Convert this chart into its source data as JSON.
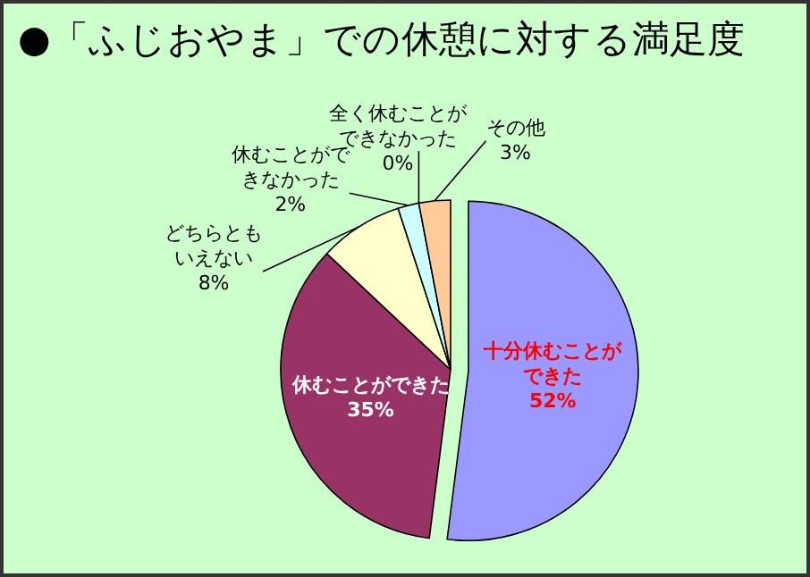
{
  "chart_data": {
    "type": "pie",
    "title": "●「ふじおやま」での休憩に対する満足度",
    "categories": [
      "十分休むことができた",
      "休むことができた",
      "どちらともいえない",
      "休むことができなかった",
      "全く休むことができなかった",
      "その他"
    ],
    "values": [
      52,
      35,
      8,
      2,
      0,
      3
    ],
    "colors": [
      "#9999ff",
      "#993366",
      "#ffffcc",
      "#ccffff",
      "#808080",
      "#ffcc99"
    ],
    "value_labels": [
      "52%",
      "35%",
      "8%",
      "2%",
      "0%",
      "3%"
    ]
  }
}
